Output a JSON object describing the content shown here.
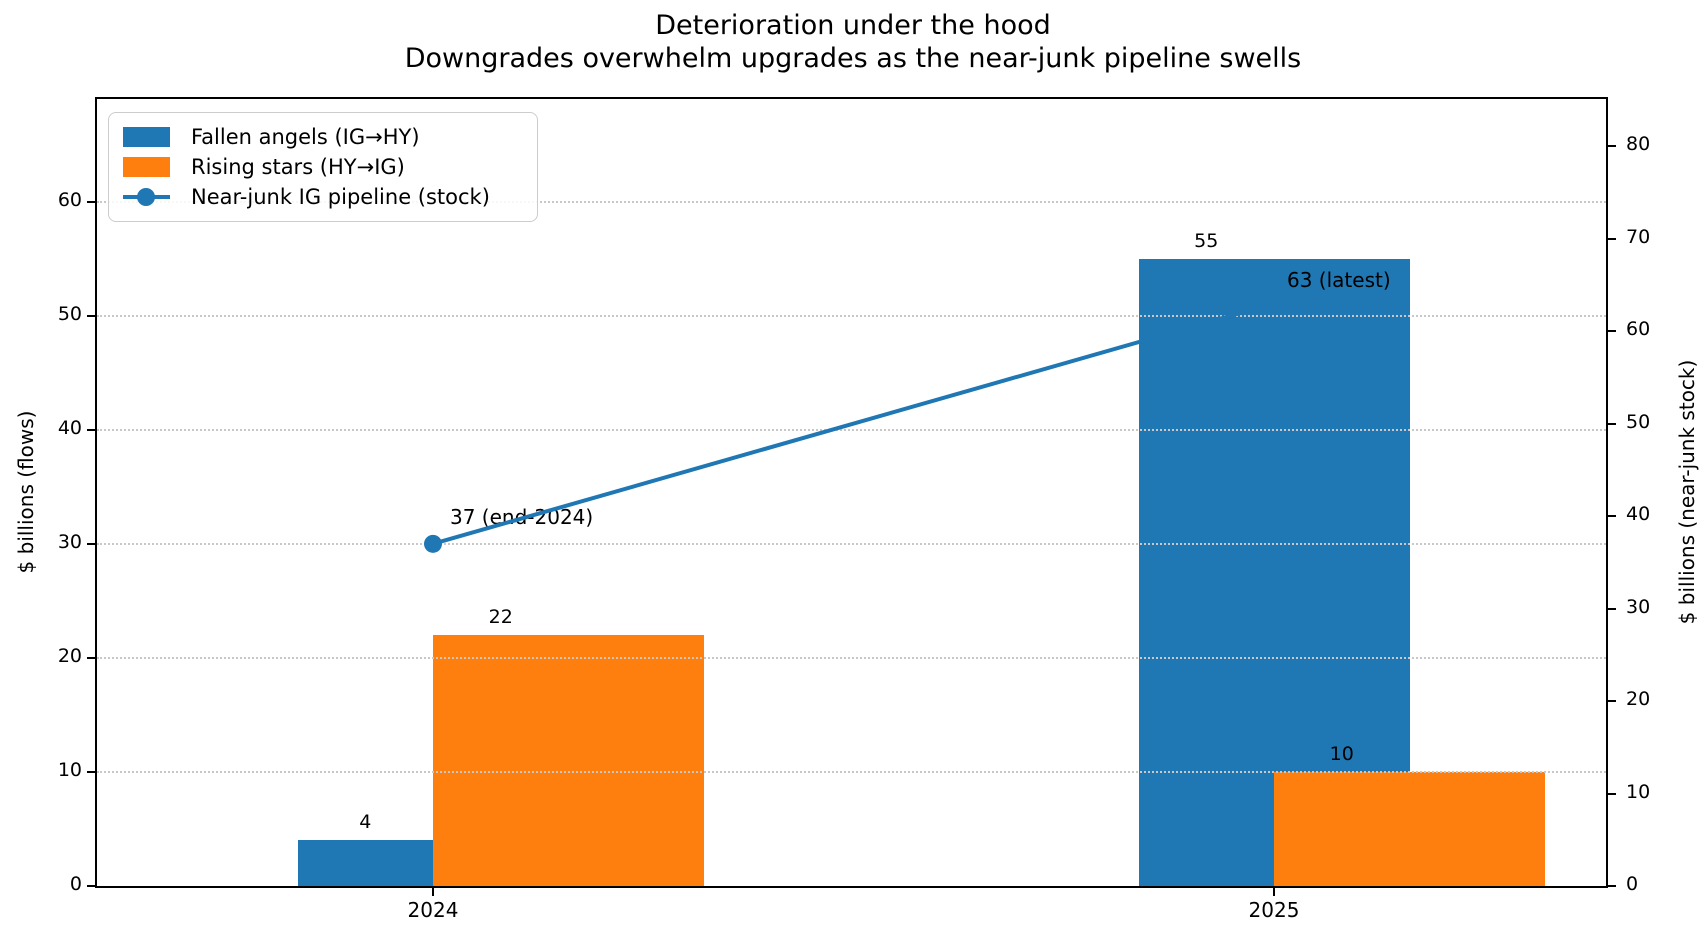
{
  "chart_data": {
    "type": "bar",
    "title": "Deterioration under the hood",
    "subtitle": "Downgrades overwhelm upgrades as the near-junk pipeline swells",
    "categories": [
      "2024",
      "2025"
    ],
    "series": [
      {
        "name": "Fallen angels (IG→HY)",
        "type": "bar",
        "axis": "left",
        "color": "#1f77b4",
        "values": [
          4,
          55
        ],
        "value_labels": [
          "4",
          "55"
        ]
      },
      {
        "name": "Rising stars (HY→IG)",
        "type": "bar",
        "axis": "left",
        "color": "#ff7f0e",
        "values": [
          22,
          10
        ],
        "value_labels": [
          "22",
          "10"
        ]
      },
      {
        "name": "Near-junk IG pipeline (stock)",
        "type": "line",
        "axis": "right",
        "color": "#1f77b4",
        "marker": "circle",
        "values": [
          37,
          63
        ],
        "point_labels": [
          "37 (end-2024)",
          "63 (latest)"
        ]
      }
    ],
    "left_axis": {
      "label": "$ billions (flows)",
      "ticks": [
        0,
        10,
        20,
        30,
        40,
        50,
        60
      ],
      "lim": [
        0,
        69
      ]
    },
    "right_axis": {
      "label": "$ billions (near-junk stock)",
      "ticks": [
        0,
        10,
        20,
        30,
        40,
        50,
        60,
        70,
        80
      ],
      "lim": [
        0,
        85.1
      ]
    },
    "grid": {
      "on": true,
      "style": "dotted",
      "which": "horizontal-left-ticks"
    },
    "legend": {
      "position": "upper-left"
    },
    "colors": {
      "bar_blue": "#1f77b4",
      "bar_orange": "#ff7f0e",
      "line_blue": "#1f77b4",
      "grid": "#c8c8c8"
    }
  }
}
